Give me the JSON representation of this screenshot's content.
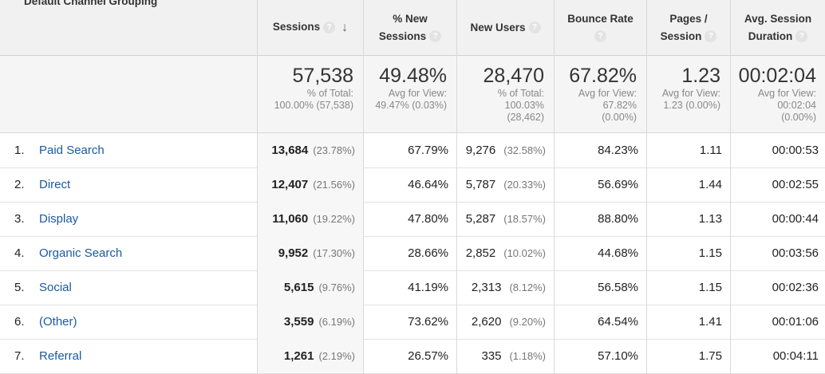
{
  "header": {
    "dimension": "Default Channel Grouping",
    "sessions": "Sessions",
    "new_sessions_l1": "% New",
    "new_sessions_l2": "Sessions",
    "new_users": "New Users",
    "bounce_l1": "Bounce Rate",
    "pages_l1": "Pages /",
    "pages_l2": "Session",
    "duration_l1": "Avg. Session",
    "duration_l2": "Duration",
    "help_icon": "?",
    "sort_icon": "arrow-down"
  },
  "totals": {
    "sessions": {
      "value": "57,538",
      "sub1": "% of Total:",
      "sub2": "100.00% (57,538)"
    },
    "new_sessions": {
      "value": "49.48%",
      "sub1": "Avg for View:",
      "sub2": "49.47% (0.03%)"
    },
    "new_users": {
      "value": "28,470",
      "sub1": "% of Total:",
      "sub2": "100.03%",
      "sub3": "(28,462)"
    },
    "bounce": {
      "value": "67.82%",
      "sub1": "Avg for View:",
      "sub2": "67.82%",
      "sub3": "(0.00%)"
    },
    "pages": {
      "value": "1.23",
      "sub1": "Avg for View:",
      "sub2": "1.23 (0.00%)"
    },
    "duration": {
      "value": "00:02:04",
      "sub1": "Avg for View:",
      "sub2": "00:02:04",
      "sub3": "(0.00%)"
    }
  },
  "rows": [
    {
      "idx": "1.",
      "channel": "Paid Search",
      "sessions": "13,684",
      "sessions_pct": "(23.78%)",
      "new_sessions": "67.79%",
      "new_users": "9,276",
      "new_users_pct": "(32.58%)",
      "bounce": "84.23%",
      "pages": "1.11",
      "duration": "00:00:53"
    },
    {
      "idx": "2.",
      "channel": "Direct",
      "sessions": "12,407",
      "sessions_pct": "(21.56%)",
      "new_sessions": "46.64%",
      "new_users": "5,787",
      "new_users_pct": "(20.33%)",
      "bounce": "56.69%",
      "pages": "1.44",
      "duration": "00:02:55"
    },
    {
      "idx": "3.",
      "channel": "Display",
      "sessions": "11,060",
      "sessions_pct": "(19.22%)",
      "new_sessions": "47.80%",
      "new_users": "5,287",
      "new_users_pct": "(18.57%)",
      "bounce": "88.80%",
      "pages": "1.13",
      "duration": "00:00:44"
    },
    {
      "idx": "4.",
      "channel": "Organic Search",
      "sessions": "9,952",
      "sessions_pct": "(17.30%)",
      "new_sessions": "28.66%",
      "new_users": "2,852",
      "new_users_pct": "(10.02%)",
      "bounce": "44.68%",
      "pages": "1.15",
      "duration": "00:03:56"
    },
    {
      "idx": "5.",
      "channel": "Social",
      "sessions": "5,615",
      "sessions_pct": "(9.76%)",
      "new_sessions": "41.19%",
      "new_users": "2,313",
      "new_users_pct": "(8.12%)",
      "bounce": "56.58%",
      "pages": "1.15",
      "duration": "00:02:36"
    },
    {
      "idx": "6.",
      "channel": "(Other)",
      "sessions": "3,559",
      "sessions_pct": "(6.19%)",
      "new_sessions": "73.62%",
      "new_users": "2,620",
      "new_users_pct": "(9.20%)",
      "bounce": "64.54%",
      "pages": "1.41",
      "duration": "00:01:06"
    },
    {
      "idx": "7.",
      "channel": "Referral",
      "sessions": "1,261",
      "sessions_pct": "(2.19%)",
      "new_sessions": "26.57%",
      "new_users": "335",
      "new_users_pct": "(1.18%)",
      "bounce": "57.10%",
      "pages": "1.75",
      "duration": "00:04:11"
    }
  ]
}
